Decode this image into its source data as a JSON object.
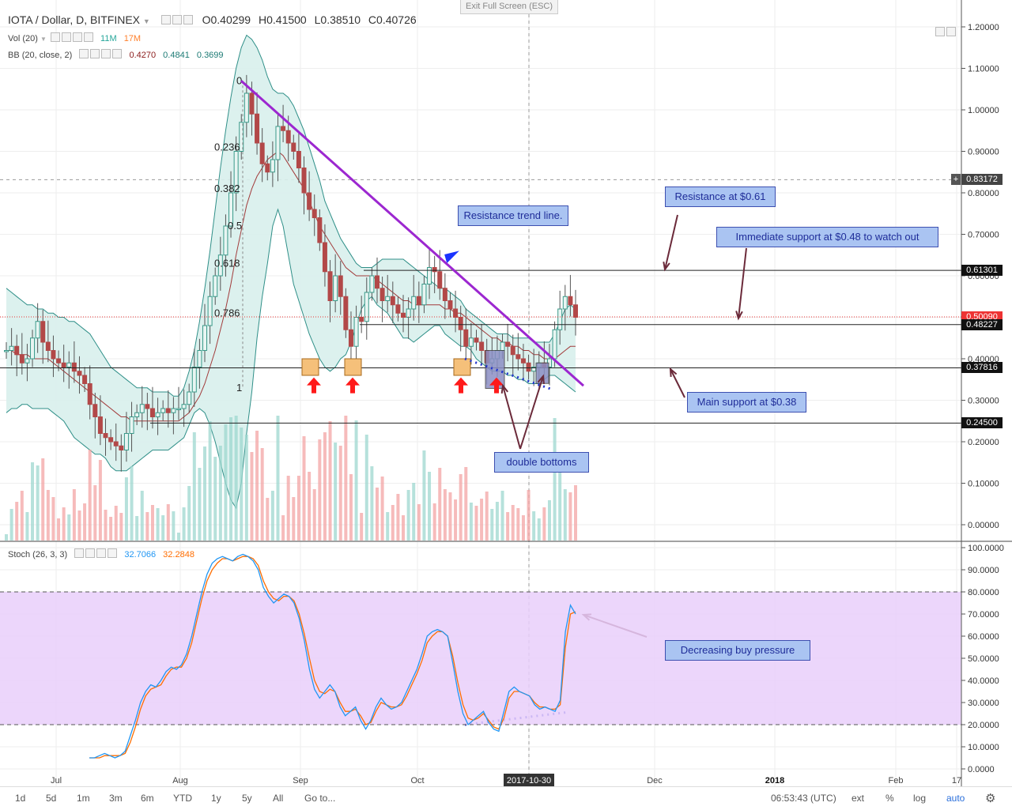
{
  "header": {
    "symbol": "IOTA / Dollar, D, BITFINEX",
    "open_label": "O",
    "open": "0.40299",
    "high_label": "H",
    "high": "0.41500",
    "low_label": "L",
    "low": "0.38510",
    "close_label": "C",
    "close": "0.40726",
    "exit_fullscreen": "Exit Full Screen (ESC)"
  },
  "indicators": {
    "vol": {
      "name": "Vol (20)",
      "v1": "11M",
      "v2": "17M",
      "v1_color": "#26a69a",
      "v2_color": "#ff7f2a"
    },
    "bb": {
      "name": "BB (20, close, 2)",
      "basis": "0.4270",
      "upper": "0.4841",
      "lower": "0.3699"
    },
    "stoch": {
      "name": "Stoch (26, 3, 3)",
      "k": "32.7066",
      "d": "32.2848",
      "k_color": "#2196f3",
      "d_color": "#ff6d00"
    }
  },
  "chart_data": [
    {
      "type": "candlestick",
      "title": "IOTA / Dollar, D, BITFINEX",
      "ylim": [
        0.0,
        1.22
      ],
      "y_ticks": [
        "1.20000",
        "1.10000",
        "1.00000",
        "0.90000",
        "0.80000",
        "0.70000",
        "0.60000",
        "0.50000",
        "0.40000",
        "0.30000",
        "0.20000",
        "0.10000",
        "0.00000"
      ],
      "x_ticks": [
        "Jul",
        "Aug",
        "Sep",
        "Oct",
        "2017-10-30",
        "Dec",
        "2018",
        "Feb",
        "17"
      ],
      "price_tags": [
        {
          "label": "0.83172",
          "value": 0.83172,
          "color": "#444444"
        },
        {
          "label": "0.61301",
          "value": 0.61301,
          "color": "#111111"
        },
        {
          "label": "0.50090",
          "value": 0.5009,
          "color": "#ee3333"
        },
        {
          "label": "0.48227",
          "value": 0.48227,
          "color": "#111111"
        },
        {
          "label": "0.37816",
          "value": 0.37816,
          "color": "#111111"
        },
        {
          "label": "0.24500",
          "value": 0.245,
          "color": "#111111"
        }
      ],
      "fib_levels": [
        {
          "label": "0",
          "value": 1.07
        },
        {
          "label": "0.236",
          "value": 0.91
        },
        {
          "label": "0.382",
          "value": 0.81
        },
        {
          "label": "0.5",
          "value": 0.72
        },
        {
          "label": "0.618",
          "value": 0.63
        },
        {
          "label": "0.786",
          "value": 0.51
        },
        {
          "label": "1",
          "value": 0.33
        }
      ],
      "close_series": [
        0.42,
        0.43,
        0.41,
        0.39,
        0.4,
        0.45,
        0.49,
        0.44,
        0.42,
        0.4,
        0.39,
        0.38,
        0.39,
        0.37,
        0.36,
        0.34,
        0.29,
        0.26,
        0.22,
        0.21,
        0.2,
        0.19,
        0.18,
        0.22,
        0.26,
        0.27,
        0.29,
        0.28,
        0.26,
        0.27,
        0.28,
        0.27,
        0.28,
        0.28,
        0.29,
        0.32,
        0.38,
        0.42,
        0.48,
        0.55,
        0.6,
        0.65,
        0.72,
        0.8,
        0.9,
        0.97,
        1.04,
        0.99,
        0.92,
        0.87,
        0.85,
        0.88,
        0.96,
        0.95,
        0.92,
        0.9,
        0.86,
        0.8,
        0.76,
        0.74,
        0.68,
        0.61,
        0.54,
        0.6,
        0.55,
        0.47,
        0.43,
        0.5,
        0.49,
        0.56,
        0.6,
        0.57,
        0.54,
        0.55,
        0.53,
        0.51,
        0.5,
        0.52,
        0.55,
        0.53,
        0.58,
        0.62,
        0.61,
        0.57,
        0.54,
        0.52,
        0.5,
        0.47,
        0.43,
        0.45,
        0.44,
        0.42,
        0.39,
        0.4,
        0.42,
        0.44,
        0.43,
        0.41,
        0.4,
        0.39,
        0.37,
        0.38,
        0.39,
        0.38,
        0.4,
        0.47,
        0.52,
        0.55,
        0.53,
        0.5
      ],
      "bb_upper": [
        0.57,
        0.56,
        0.55,
        0.54,
        0.53,
        0.53,
        0.52,
        0.52,
        0.51,
        0.51,
        0.5,
        0.5,
        0.49,
        0.49,
        0.48,
        0.47,
        0.46,
        0.44,
        0.42,
        0.4,
        0.38,
        0.37,
        0.36,
        0.35,
        0.34,
        0.33,
        0.33,
        0.33,
        0.32,
        0.32,
        0.32,
        0.32,
        0.31,
        0.31,
        0.33,
        0.37,
        0.42,
        0.49,
        0.57,
        0.66,
        0.76,
        0.86,
        0.95,
        1.03,
        1.1,
        1.15,
        1.18,
        1.17,
        1.15,
        1.12,
        1.08,
        1.05,
        1.04,
        1.04,
        1.03,
        1.01,
        0.98,
        0.95,
        0.91,
        0.87,
        0.83,
        0.78,
        0.75,
        0.72,
        0.69,
        0.67,
        0.65,
        0.63,
        0.62,
        0.62,
        0.62,
        0.63,
        0.64,
        0.64,
        0.64,
        0.64,
        0.64,
        0.63,
        0.62,
        0.61,
        0.6,
        0.59,
        0.58,
        0.57,
        0.57,
        0.56,
        0.55,
        0.54,
        0.52,
        0.51,
        0.5,
        0.49,
        0.48,
        0.47,
        0.46,
        0.46,
        0.46,
        0.45,
        0.45,
        0.45,
        0.45,
        0.44,
        0.44,
        0.44,
        0.44,
        0.46,
        0.49,
        0.52,
        0.53,
        0.52
      ],
      "bb_basis": [
        0.42,
        0.42,
        0.41,
        0.41,
        0.41,
        0.4,
        0.4,
        0.4,
        0.4,
        0.39,
        0.38,
        0.37,
        0.36,
        0.35,
        0.34,
        0.33,
        0.32,
        0.31,
        0.3,
        0.29,
        0.28,
        0.27,
        0.26,
        0.26,
        0.25,
        0.25,
        0.25,
        0.25,
        0.25,
        0.25,
        0.25,
        0.25,
        0.25,
        0.25,
        0.26,
        0.27,
        0.29,
        0.31,
        0.34,
        0.38,
        0.42,
        0.47,
        0.52,
        0.58,
        0.65,
        0.71,
        0.77,
        0.81,
        0.84,
        0.86,
        0.88,
        0.89,
        0.9,
        0.89,
        0.87,
        0.85,
        0.83,
        0.81,
        0.78,
        0.75,
        0.72,
        0.7,
        0.68,
        0.66,
        0.64,
        0.62,
        0.61,
        0.6,
        0.6,
        0.6,
        0.6,
        0.59,
        0.58,
        0.57,
        0.56,
        0.55,
        0.54,
        0.54,
        0.53,
        0.53,
        0.53,
        0.53,
        0.53,
        0.53,
        0.52,
        0.52,
        0.51,
        0.51,
        0.5,
        0.49,
        0.48,
        0.47,
        0.46,
        0.45,
        0.45,
        0.44,
        0.44,
        0.43,
        0.43,
        0.42,
        0.42,
        0.41,
        0.41,
        0.4,
        0.4,
        0.4,
        0.41,
        0.42,
        0.43,
        0.43
      ],
      "bb_lower": [
        0.27,
        0.28,
        0.28,
        0.29,
        0.29,
        0.28,
        0.28,
        0.28,
        0.28,
        0.27,
        0.26,
        0.25,
        0.23,
        0.21,
        0.2,
        0.19,
        0.18,
        0.17,
        0.17,
        0.16,
        0.14,
        0.13,
        0.13,
        0.13,
        0.14,
        0.15,
        0.16,
        0.17,
        0.18,
        0.18,
        0.18,
        0.18,
        0.19,
        0.2,
        0.21,
        0.24,
        0.27,
        0.28,
        0.27,
        0.24,
        0.2,
        0.15,
        0.1,
        0.06,
        0.04,
        0.1,
        0.22,
        0.32,
        0.45,
        0.55,
        0.63,
        0.72,
        0.76,
        0.72,
        0.65,
        0.58,
        0.54,
        0.5,
        0.46,
        0.43,
        0.4,
        0.38,
        0.37,
        0.38,
        0.4,
        0.41,
        0.44,
        0.48,
        0.52,
        0.54,
        0.55,
        0.53,
        0.52,
        0.51,
        0.49,
        0.47,
        0.45,
        0.45,
        0.44,
        0.45,
        0.46,
        0.47,
        0.48,
        0.48,
        0.46,
        0.45,
        0.44,
        0.43,
        0.43,
        0.42,
        0.4,
        0.39,
        0.38,
        0.37,
        0.37,
        0.37,
        0.36,
        0.36,
        0.35,
        0.35,
        0.34,
        0.34,
        0.34,
        0.35,
        0.36,
        0.36,
        0.35,
        0.34,
        0.33,
        0.32
      ]
    },
    {
      "type": "line",
      "title": "Stoch (26, 3, 3)",
      "ylim": [
        0,
        100
      ],
      "y_ticks": [
        "100.0000",
        "90.0000",
        "80.0000",
        "70.0000",
        "60.0000",
        "50.0000",
        "40.0000",
        "30.0000",
        "20.0000",
        "10.0000",
        "0.0000"
      ],
      "overbought": 80,
      "oversold": 20,
      "series": [
        {
          "name": "%K",
          "values": [
            5,
            5,
            6,
            7,
            6,
            5,
            6,
            8,
            15,
            22,
            30,
            35,
            38,
            37,
            40,
            44,
            46,
            45,
            47,
            52,
            60,
            70,
            80,
            88,
            93,
            95,
            96,
            95,
            94,
            96,
            97,
            96,
            94,
            90,
            82,
            78,
            75,
            77,
            79,
            78,
            75,
            68,
            58,
            45,
            36,
            32,
            35,
            38,
            35,
            28,
            24,
            26,
            28,
            22,
            18,
            22,
            28,
            32,
            29,
            27,
            28,
            30,
            35,
            40,
            45,
            52,
            60,
            62,
            63,
            62,
            60,
            48,
            35,
            25,
            20,
            22,
            24,
            26,
            21,
            18,
            17,
            26,
            35,
            37,
            35,
            34,
            33,
            29,
            27,
            28,
            27,
            26,
            31,
            62,
            74,
            70
          ]
        },
        {
          "name": "%D",
          "values": [
            5,
            5,
            5,
            6,
            6,
            6,
            6,
            7,
            12,
            19,
            27,
            33,
            36,
            37,
            38,
            42,
            45,
            46,
            46,
            50,
            57,
            67,
            77,
            85,
            90,
            93,
            95,
            95,
            94,
            95,
            96,
            96,
            95,
            92,
            85,
            80,
            77,
            76,
            78,
            78,
            76,
            70,
            61,
            50,
            40,
            35,
            34,
            36,
            35,
            30,
            26,
            26,
            27,
            24,
            20,
            21,
            26,
            30,
            29,
            28,
            28,
            29,
            33,
            38,
            43,
            49,
            57,
            60,
            62,
            62,
            60,
            51,
            39,
            29,
            23,
            22,
            23,
            25,
            22,
            19,
            18,
            23,
            32,
            35,
            35,
            34,
            33,
            30,
            28,
            28,
            27,
            27,
            29,
            55,
            70,
            71
          ]
        }
      ]
    }
  ],
  "annotations": {
    "resistance_trend": "Resistance trend line.",
    "resistance_061": "Resistance at $0.61",
    "immediate_support": "Immediate support at $0.48 to watch out",
    "main_support": "Main support at $0.38",
    "double_bottoms": "double bottoms",
    "decreasing_buy": "Decreasing buy pressure"
  },
  "toolbar": {
    "ranges": [
      "1d",
      "5d",
      "1m",
      "3m",
      "6m",
      "YTD",
      "1y",
      "5y",
      "All"
    ],
    "goto": "Go to...",
    "time": "06:53:43 (UTC)",
    "ext": "ext",
    "pct": "%",
    "log": "log",
    "auto": "auto",
    "settings_icon": "gear-icon"
  },
  "colors": {
    "up": "#26a69a",
    "down": "#ef5350",
    "trendline": "#9c27d0",
    "bb_fill": "#d8f0ec",
    "stoch_band": "#e9cffa"
  }
}
